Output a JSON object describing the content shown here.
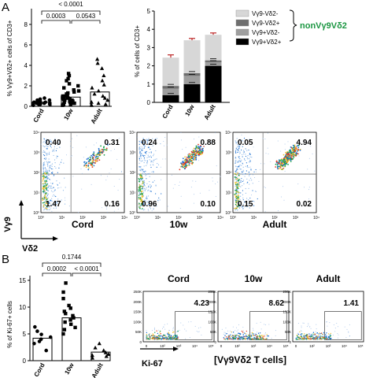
{
  "panel_labels": {
    "a": "A",
    "b": "B"
  },
  "conditions": [
    "Cord",
    "10w",
    "Adult"
  ],
  "panelA": {
    "scatter": {
      "ylabel": "% Vγ9+Vδ2+ cells of CD3+",
      "yticks": [
        "0",
        "2",
        "4",
        "6",
        "8"
      ],
      "pvals": {
        "top": "< 0.0001",
        "left": "0.0003",
        "right": "0.0543"
      }
    },
    "stacked": {
      "ylabel": "% of cells of CD3+",
      "yticks": [
        "0",
        "1",
        "2",
        "3",
        "4",
        "5"
      ],
      "legend": [
        "Vγ9-Vδ2-",
        "Vγ9-Vδ2+",
        "Vγ9+Vδ2-",
        "Vγ9+Vδ2+"
      ],
      "group_label": "nonVγ9Vδ2",
      "group_color": "#1a9641"
    },
    "flow": {
      "ylabel": "Vγ9",
      "xlabel": "Vδ2",
      "ticks": [
        "10⁰",
        "10¹",
        "10²",
        "10³",
        "10⁴"
      ],
      "plots": [
        {
          "name": "Cord",
          "q": [
            "0.40",
            "0.31",
            "1.47",
            "0.16"
          ]
        },
        {
          "name": "10w",
          "q": [
            "0.24",
            "0.88",
            "0.96",
            "0.10"
          ]
        },
        {
          "name": "Adult",
          "q": [
            "0.05",
            "4.94",
            "0.15",
            "0.02"
          ]
        }
      ]
    }
  },
  "panelB": {
    "scatter": {
      "ylabel": "% of Ki-67+ cells",
      "yticks": [
        "0",
        "5",
        "10",
        "15"
      ],
      "pvals": {
        "top": "0.1744",
        "left": "0.0002",
        "right": "< 0.0001"
      }
    },
    "flow": {
      "yticks": [
        "250K",
        "200K",
        "150K",
        "100K",
        "50K",
        "0"
      ],
      "xticks": [
        "0",
        "10²",
        "10³",
        "10⁴",
        "10⁵"
      ],
      "xlabel": "Ki-67",
      "caption": "[Vγ9Vδ2 T cells]",
      "plots": [
        {
          "name": "Cord",
          "value": "4.23"
        },
        {
          "name": "10w",
          "value": "8.62"
        },
        {
          "name": "Adult",
          "value": "1.41"
        }
      ]
    }
  },
  "chart_data": [
    {
      "type": "bar",
      "categories": [
        "Cord",
        "10w",
        "Adult"
      ],
      "values": [
        0.4,
        0.9,
        1.4
      ],
      "ylabel": "% Vγ9+Vδ2+ cells of CD3+",
      "ylim": [
        0,
        8
      ],
      "points": [
        [
          0.1,
          0.2,
          0.2,
          0.3,
          0.3,
          0.3,
          0.4,
          0.4,
          0.5,
          0.5,
          0.6,
          0.6,
          0.7,
          0.8,
          0.2,
          0.3
        ],
        [
          0.1,
          0.2,
          0.3,
          0.4,
          0.4,
          0.5,
          0.5,
          0.6,
          0.6,
          0.7,
          0.7,
          0.8,
          0.8,
          0.9,
          1.0,
          1.0,
          1.1,
          1.2,
          1.3,
          1.5,
          1.6,
          1.8,
          2.0,
          2.2,
          2.5,
          2.7,
          3.0,
          3.2,
          1.4,
          0.9,
          0.3,
          0.2
        ],
        [
          0.1,
          0.2,
          0.4,
          0.6,
          0.8,
          1.0,
          1.2,
          1.5,
          1.8,
          2.1,
          2.5,
          3.0,
          3.7,
          4.2,
          4.6,
          0.3
        ]
      ]
    },
    {
      "type": "bar",
      "categories": [
        "Cord",
        "10w",
        "Adult"
      ],
      "ylabel": "% of cells of CD3+",
      "ylim": [
        0,
        5
      ],
      "series": [
        {
          "name": "Vγ9+Vδ2+",
          "values": [
            0.4,
            1.0,
            2.0
          ],
          "color": "#000000"
        },
        {
          "name": "Vγ9+Vδ2-",
          "values": [
            0.35,
            0.45,
            0.2
          ],
          "color": "#9e9e9e"
        },
        {
          "name": "Vγ9-Vδ2+",
          "values": [
            0.15,
            0.15,
            0.1
          ],
          "color": "#6e6e6e"
        },
        {
          "name": "Vγ9-Vδ2-",
          "values": [
            1.55,
            1.8,
            1.4
          ],
          "color": "#d7d7d7"
        }
      ],
      "errors": [
        0.15,
        0.1,
        0.1
      ]
    },
    {
      "type": "bar",
      "categories": [
        "Cord",
        "10w",
        "Adult"
      ],
      "values": [
        4.2,
        8.0,
        1.6
      ],
      "ylabel": "% of Ki-67+ cells",
      "ylim": [
        0,
        15
      ],
      "points": [
        [
          3.2,
          3.6,
          4.0,
          4.4,
          4.9,
          5.5,
          6.3,
          1.9
        ],
        [
          5.0,
          5.8,
          6.2,
          6.8,
          7.2,
          7.6,
          8.0,
          8.4,
          8.8,
          9.2,
          9.8,
          10.3,
          11.6,
          12.8,
          14.5
        ],
        [
          0.5,
          0.8,
          1.0,
          1.2,
          1.5,
          1.9,
          2.4,
          3.2
        ]
      ]
    }
  ]
}
